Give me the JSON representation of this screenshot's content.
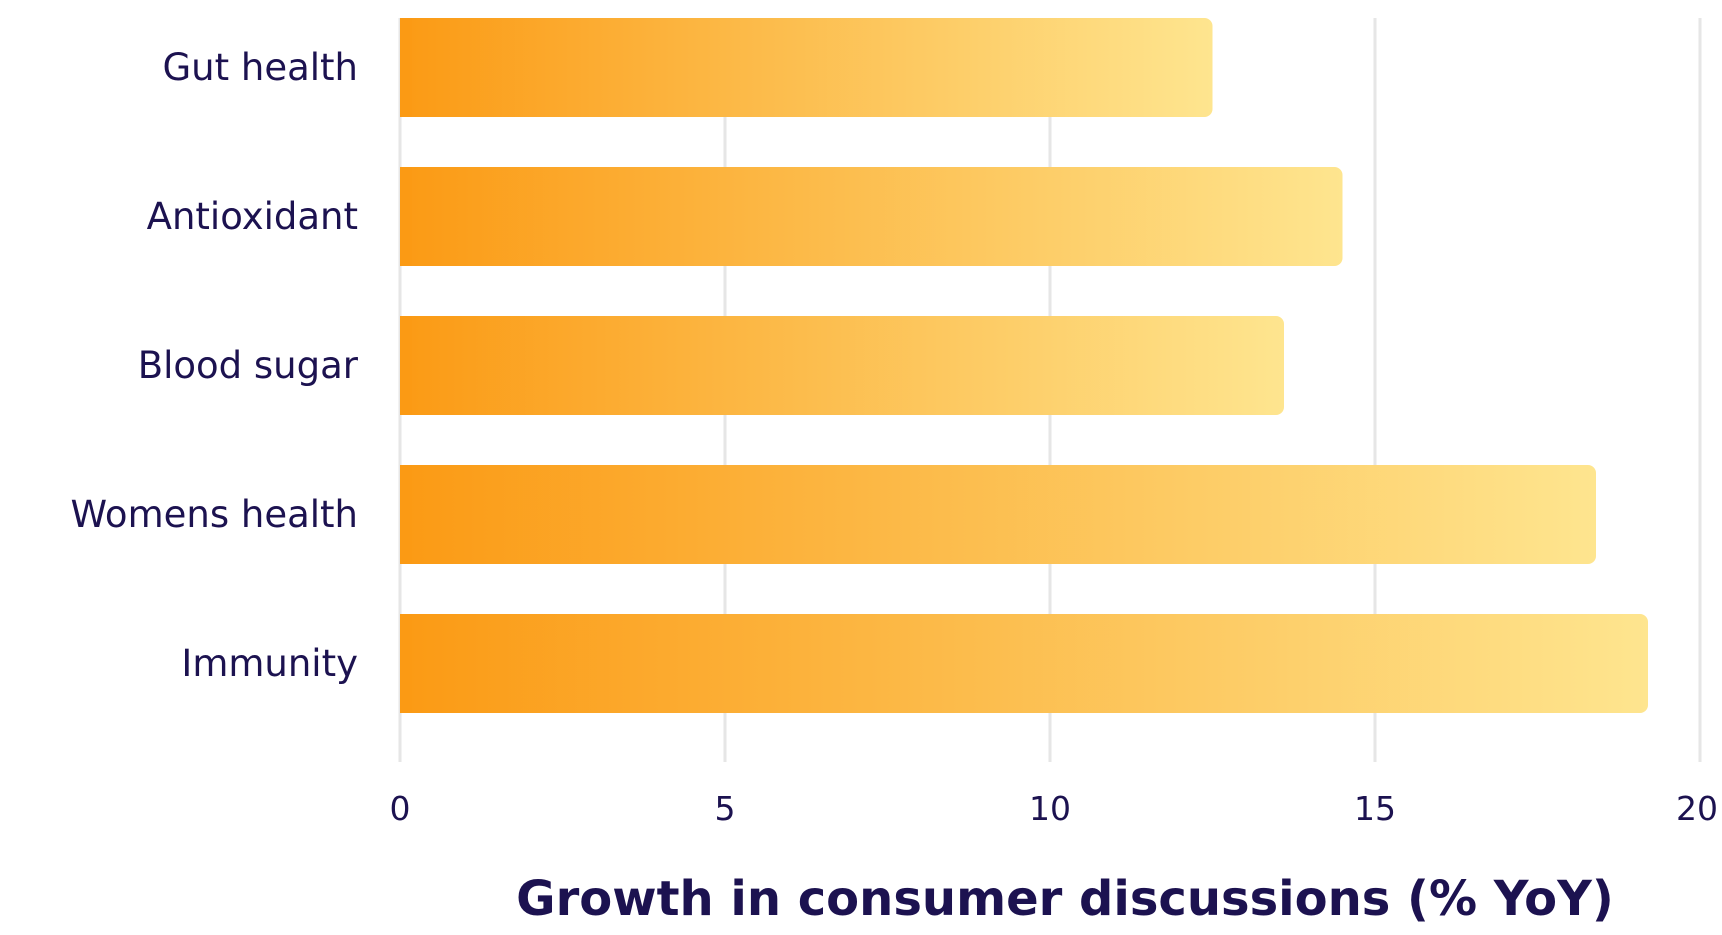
{
  "chart_data": {
    "type": "bar",
    "orientation": "horizontal",
    "categories": [
      "Gut health",
      "Antioxidant",
      "Blood sugar",
      "Womens health",
      "Immunity"
    ],
    "values": [
      12.5,
      14.5,
      13.6,
      18.4,
      19.2
    ],
    "title": "",
    "xlabel": "Growth in consumer discussions (% YoY)",
    "ylabel": "",
    "xlim": [
      0,
      20
    ],
    "xticks": [
      0,
      5,
      10,
      15,
      20
    ],
    "xtick_labels": [
      "0",
      "5",
      "10",
      "15",
      "20"
    ],
    "grid": "vertical",
    "legend": "none",
    "colors": {
      "bar_start": "#fb9a14",
      "bar_end": "#fee58f",
      "text": "#1c1250",
      "grid": "#e6e6e6"
    }
  }
}
